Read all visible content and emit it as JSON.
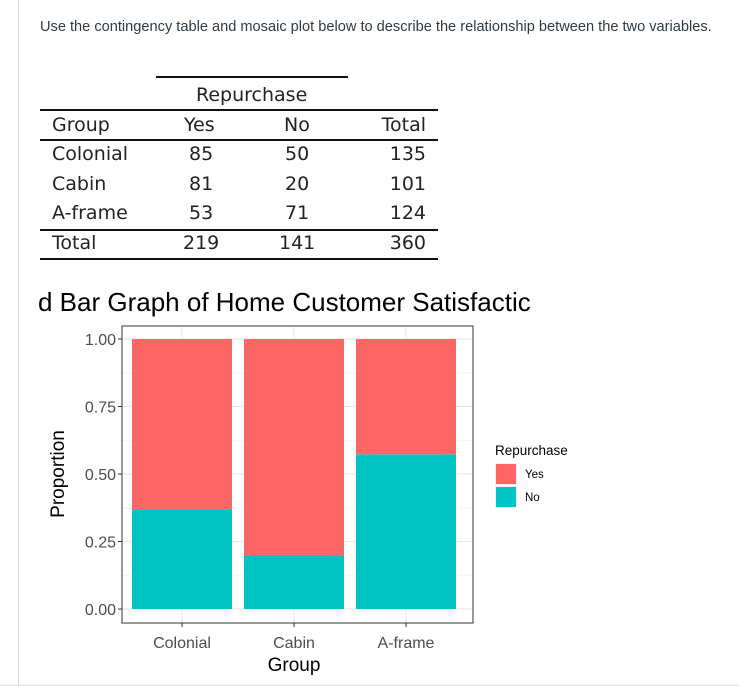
{
  "prompt": "Use the contingency table and mosaic plot below to describe the relationship between the two variables.",
  "table": {
    "spanner": "Repurchase",
    "headers": [
      "Group",
      "Yes",
      "No",
      "Total"
    ],
    "rows": [
      [
        "Colonial",
        "85",
        "50",
        "135"
      ],
      [
        "Cabin",
        "81",
        "20",
        "101"
      ],
      [
        "A-frame",
        "53",
        "71",
        "124"
      ]
    ],
    "total_row": [
      "Total",
      "219",
      "141",
      "360"
    ]
  },
  "chart_data": {
    "type": "bar",
    "stacked": true,
    "title": "d Bar Graph of Home Customer Satisfactic",
    "xlabel": "Group",
    "ylabel": "Proportion",
    "categories": [
      "Colonial",
      "Cabin",
      "A-frame"
    ],
    "ylim": [
      0,
      1
    ],
    "yticks": [
      "0.00",
      "0.25",
      "0.50",
      "0.75",
      "1.00"
    ],
    "legend_title": "Repurchase",
    "legend_position": "right",
    "grid": true,
    "series": [
      {
        "name": "No",
        "values": [
          0.37,
          0.198,
          0.573
        ],
        "color": "#00C4C4"
      },
      {
        "name": "Yes",
        "values": [
          0.63,
          0.802,
          0.427
        ],
        "color": "#FF6666"
      }
    ],
    "legend_order": [
      "Yes",
      "No"
    ]
  }
}
